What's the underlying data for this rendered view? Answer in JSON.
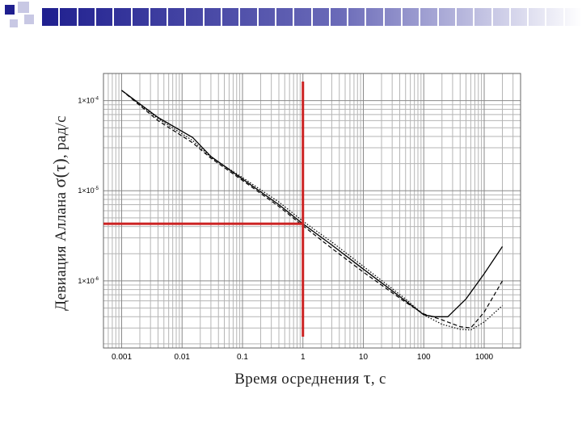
{
  "slide": {
    "header_colors": [
      "#1f1f8f",
      "#ffffff"
    ]
  },
  "chart_data": {
    "type": "line",
    "title": "",
    "xlabel": {
      "prefix": "Время осреднения ",
      "symbol": "τ",
      "suffix": ", с"
    },
    "ylabel": {
      "prefix": "Девиация Аллана ",
      "symbol": "σ(τ)",
      "suffix": ", рад/с"
    },
    "x_scale": "log",
    "y_scale": "log",
    "xlim": [
      0.0005,
      4000
    ],
    "ylim": [
      1.8e-07,
      0.0002
    ],
    "grid": true,
    "x_ticks": [
      {
        "value": 0.001,
        "label": "0.001"
      },
      {
        "value": 0.01,
        "label": "0.01"
      },
      {
        "value": 0.1,
        "label": "0.1"
      },
      {
        "value": 1,
        "label": "1"
      },
      {
        "value": 10,
        "label": "10"
      },
      {
        "value": 100,
        "label": "100"
      },
      {
        "value": 1000,
        "label": "1000"
      }
    ],
    "y_ticks": [
      {
        "value": 0.0001,
        "base": "1×10",
        "exp": "-4"
      },
      {
        "value": 1e-05,
        "base": "1×10",
        "exp": "-5"
      },
      {
        "value": 1e-06,
        "base": "1×10",
        "exp": "-6"
      }
    ],
    "series": [
      {
        "style": "solid",
        "color": "#000000",
        "x": [
          0.001,
          0.004,
          0.015,
          0.03,
          0.1,
          0.4,
          1,
          3,
          10,
          50,
          100,
          150,
          250,
          500,
          1000,
          2000
        ],
        "y": [
          0.00013,
          6.5e-05,
          3.9e-05,
          2.4e-05,
          1.35e-05,
          7e-06,
          4.3e-06,
          2.5e-06,
          1.35e-06,
          6e-07,
          4.2e-07,
          4e-07,
          4e-07,
          6.3e-07,
          1.2e-06,
          2.4e-06
        ]
      },
      {
        "style": "dashed",
        "color": "#000000",
        "x": [
          0.001,
          0.004,
          0.015,
          0.03,
          0.1,
          0.4,
          1,
          3,
          10,
          50,
          100,
          200,
          400,
          600,
          1000,
          2000
        ],
        "y": [
          0.00013,
          6e-05,
          3.4e-05,
          2.3e-05,
          1.3e-05,
          6.7e-06,
          4.1e-06,
          2.3e-06,
          1.25e-06,
          5.8e-07,
          4.3e-07,
          3.7e-07,
          3.1e-07,
          3e-07,
          4.5e-07,
          1e-06
        ]
      },
      {
        "style": "dotted",
        "color": "#000000",
        "x": [
          0.001,
          0.004,
          0.015,
          0.03,
          0.1,
          0.4,
          1,
          3,
          10,
          50,
          100,
          200,
          400,
          600,
          1000,
          2000
        ],
        "y": [
          0.00013,
          6.3e-05,
          3.6e-05,
          2.35e-05,
          1.4e-05,
          7.5e-06,
          4.6e-06,
          2.7e-06,
          1.45e-06,
          6.3e-07,
          4.2e-07,
          3.3e-07,
          2.9e-07,
          2.85e-07,
          3.5e-07,
          5.3e-07
        ]
      }
    ],
    "annotation": {
      "color": "#cc2222",
      "x_value": 1,
      "y_value": 4.3e-06
    }
  }
}
